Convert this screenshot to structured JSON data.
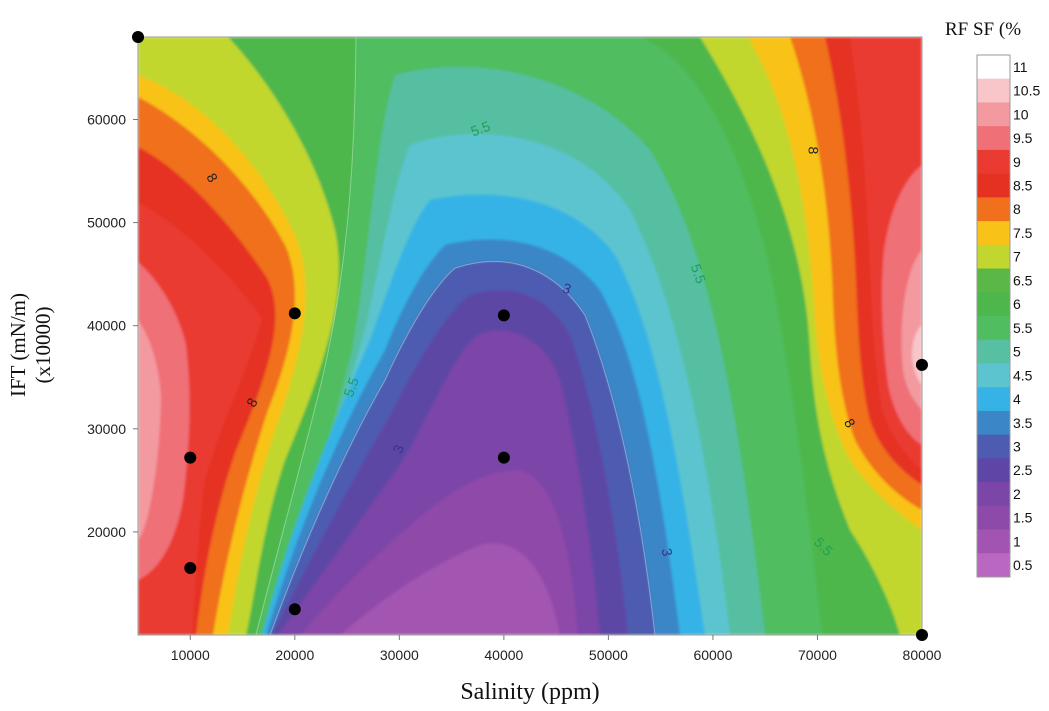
{
  "chart_data": {
    "type": "contour",
    "xlabel": "Salinity (ppm)",
    "ylabel": "IFT (mN/m)",
    "ylabel_sub": "(x10000)",
    "legend_title": "RF SF (%",
    "xlim": [
      5000,
      80000
    ],
    "ylim": [
      10000,
      68000
    ],
    "x_ticks": [
      10000,
      20000,
      30000,
      40000,
      50000,
      60000,
      70000,
      80000
    ],
    "x_tick_labels": [
      "10000",
      "20000",
      "30000",
      "40000",
      "50000",
      "60000",
      "70000",
      "80000"
    ],
    "y_ticks": [
      20000,
      30000,
      40000,
      50000,
      60000
    ],
    "y_tick_labels": [
      "20000",
      "30000",
      "40000",
      "50000",
      "60000"
    ],
    "colorbar_levels": [
      11,
      10.5,
      10,
      9.5,
      9,
      8.5,
      8,
      7.5,
      7,
      6.5,
      6,
      5.5,
      5,
      4.5,
      4,
      3.5,
      3,
      2.5,
      2,
      1.5,
      1,
      0.5
    ],
    "colorbar_labels": [
      "11",
      "10.5",
      "10",
      "9.5",
      "9",
      "8.5",
      "8",
      "7.5",
      "7",
      "6.5",
      "6",
      "5.5",
      "5",
      "4.5",
      "4",
      "3.5",
      "3",
      "2.5",
      "2",
      "1.5",
      "1",
      "0.5"
    ],
    "colorbar_colors": [
      "#ffffff",
      "#f8c6c8",
      "#f39aa0",
      "#ef7077",
      "#ea3b33",
      "#e53121",
      "#f0701c",
      "#f8c219",
      "#c1d72f",
      "#5bb846",
      "#4db74c",
      "#50bd60",
      "#57bfa2",
      "#5cc4cf",
      "#35b3e6",
      "#3b86c7",
      "#4d5cb0",
      "#5d46a5",
      "#7c45a8",
      "#8e4aa9",
      "#a254b1",
      "#b967c0"
    ],
    "design_points": [
      {
        "x": 5000,
        "y": 68000
      },
      {
        "x": 10000,
        "y": 16500
      },
      {
        "x": 10000,
        "y": 27200
      },
      {
        "x": 20000,
        "y": 41200
      },
      {
        "x": 20000,
        "y": 12500
      },
      {
        "x": 40000,
        "y": 41000
      },
      {
        "x": 40000,
        "y": 27200
      },
      {
        "x": 80000,
        "y": 36200
      },
      {
        "x": 80000,
        "y": 10000
      }
    ],
    "contour_labels": [
      {
        "text": "8",
        "x": 12000,
        "y": 54300,
        "color": "#222222",
        "rotate": 60
      },
      {
        "text": "8",
        "x": 16000,
        "y": 32500,
        "color": "#222222",
        "rotate": -60
      },
      {
        "text": "8",
        "x": 69500,
        "y": 57000,
        "color": "#222222",
        "rotate": 90
      },
      {
        "text": "8",
        "x": 73000,
        "y": 30500,
        "color": "#222222",
        "rotate": 60
      },
      {
        "text": "5.5",
        "x": 37800,
        "y": 59000,
        "color": "#1f9f5a",
        "rotate": -20
      },
      {
        "text": "5.5",
        "x": 58500,
        "y": 45000,
        "color": "#1f9f5a",
        "rotate": 70
      },
      {
        "text": "5.5",
        "x": 25500,
        "y": 34000,
        "color": "#1f9f5a",
        "rotate": -70
      },
      {
        "text": "5.5",
        "x": 70500,
        "y": 18500,
        "color": "#1f9f5a",
        "rotate": 45
      },
      {
        "text": "3",
        "x": 46000,
        "y": 43500,
        "color": "#3b2f8f",
        "rotate": 20
      },
      {
        "text": "3",
        "x": 30000,
        "y": 28000,
        "color": "#3b2f8f",
        "rotate": -70
      },
      {
        "text": "3",
        "x": 55500,
        "y": 18000,
        "color": "#3b2f8f",
        "rotate": 80
      }
    ]
  }
}
